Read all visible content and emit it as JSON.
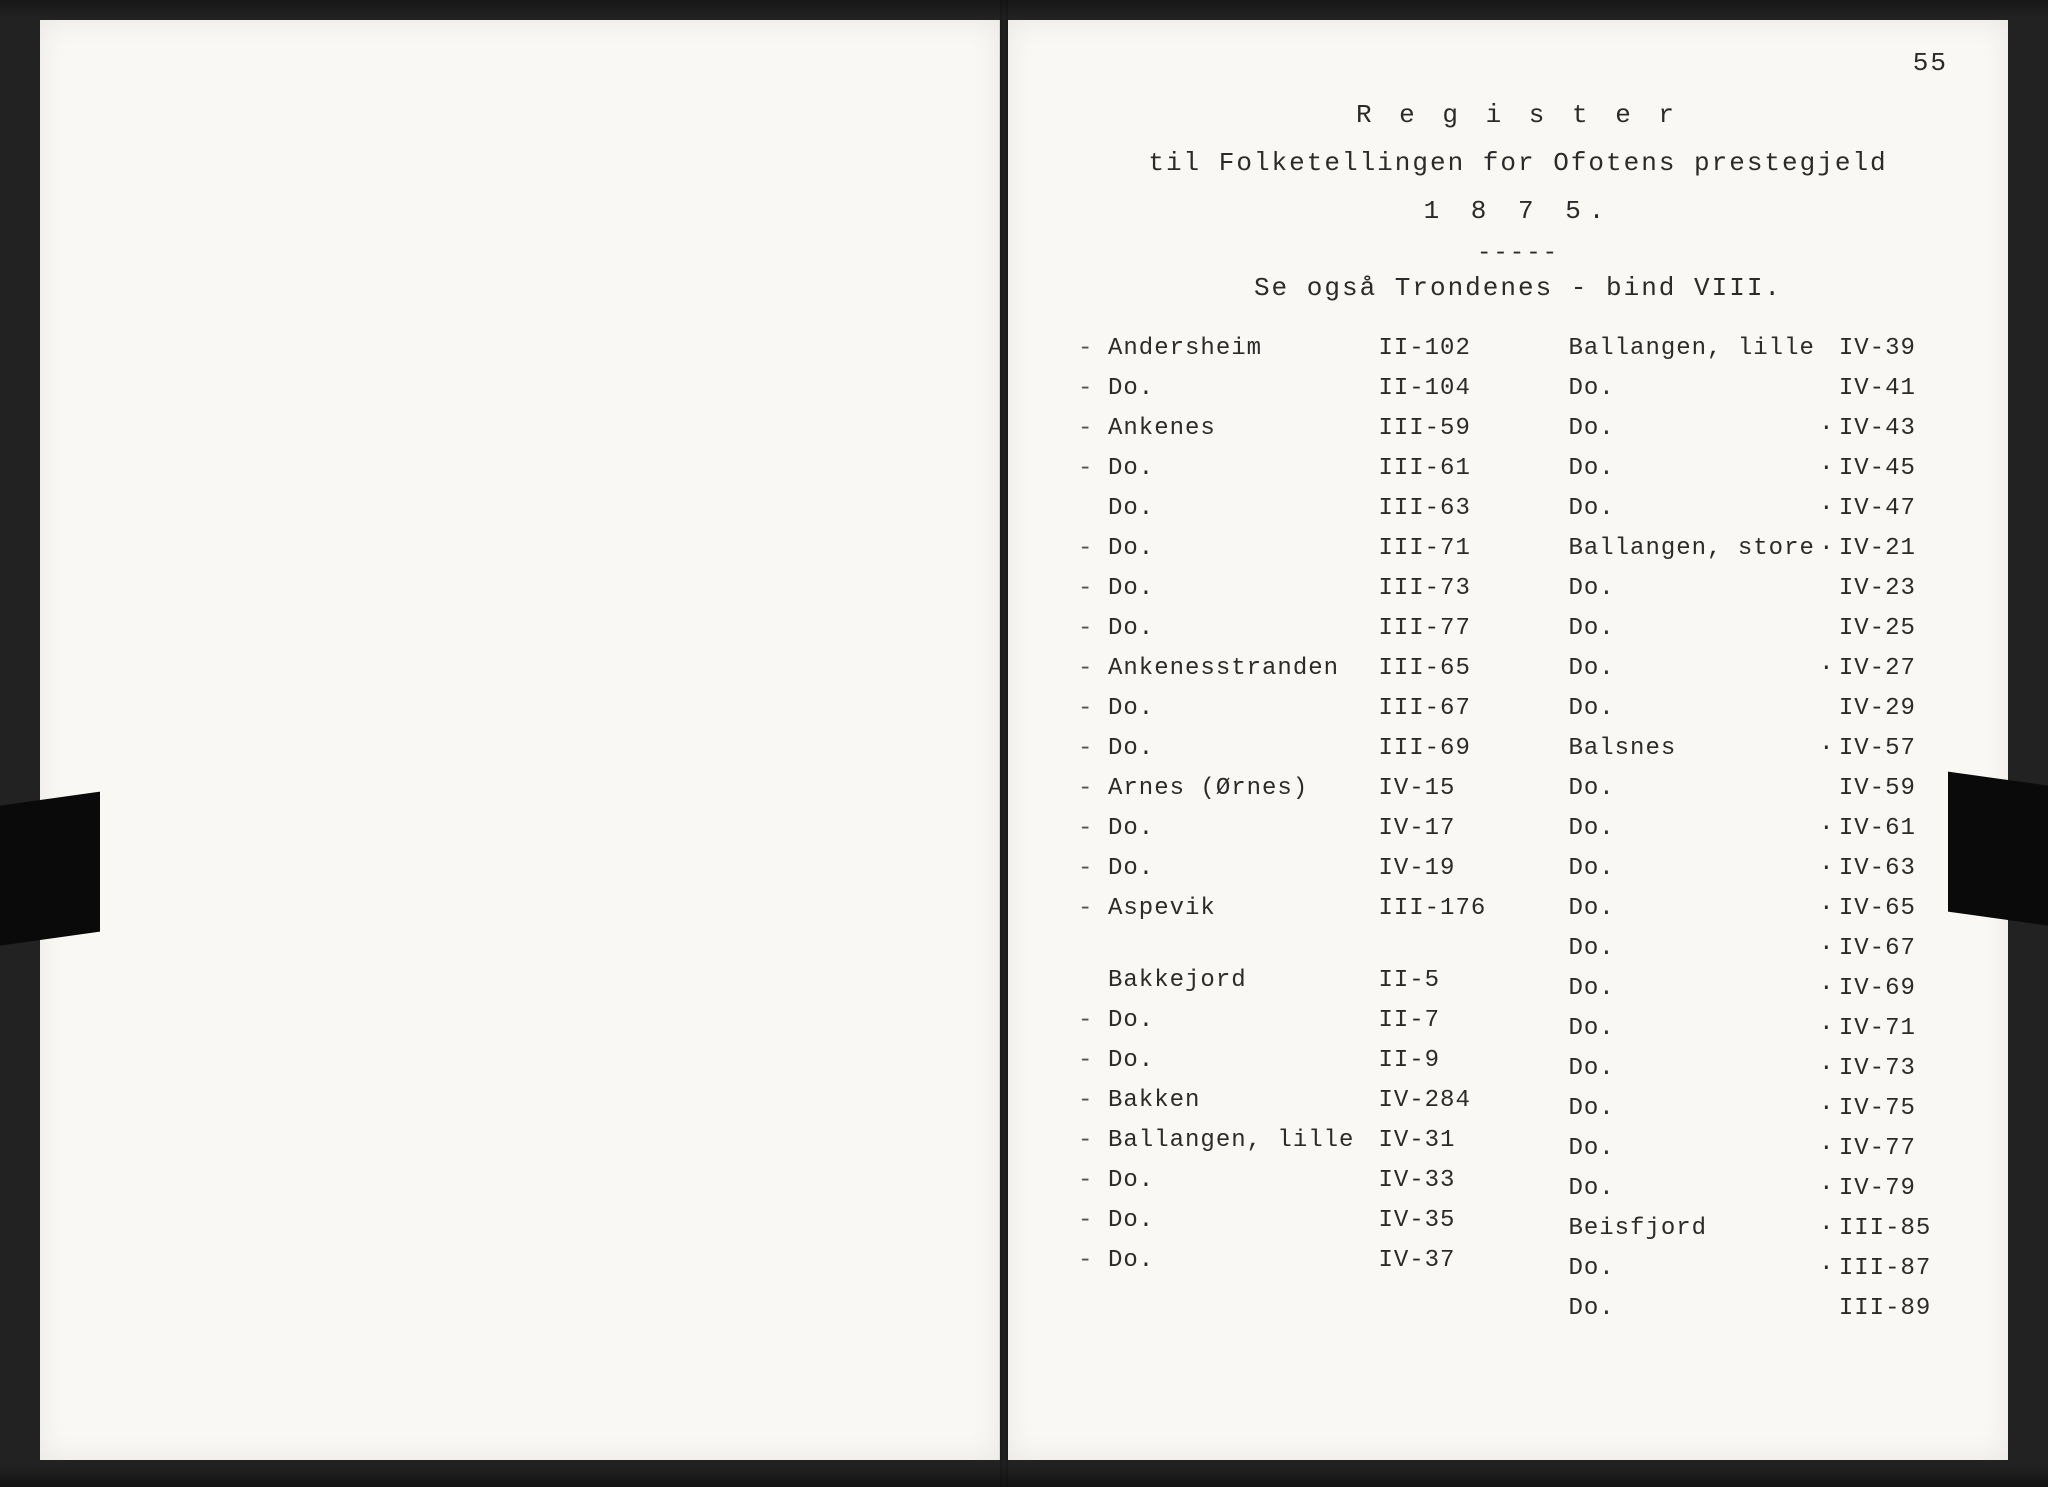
{
  "page_number": "55",
  "header": {
    "title": "R e g i s t e r",
    "subtitle": "til Folketellingen for Ofotens prestegjeld",
    "year": "1 8 7 5.",
    "dashes": "-----",
    "note": "Se også Trondenes - bind VIII."
  },
  "left_col": [
    {
      "dash": "-",
      "name": "Andersheim",
      "ref": "II-102",
      "dot": ""
    },
    {
      "dash": "-",
      "name": "Do.",
      "ref": "II-104",
      "dot": ""
    },
    {
      "dash": "-",
      "name": "Ankenes",
      "ref": "III-59",
      "dot": ""
    },
    {
      "dash": "-",
      "name": "Do.",
      "ref": "III-61",
      "dot": ""
    },
    {
      "dash": "",
      "name": "Do.",
      "ref": "III-63",
      "dot": ""
    },
    {
      "dash": "-",
      "name": "Do.",
      "ref": "III-71",
      "dot": ""
    },
    {
      "dash": "-",
      "name": "Do.",
      "ref": "III-73",
      "dot": ""
    },
    {
      "dash": "-",
      "name": "Do.",
      "ref": "III-77",
      "dot": ""
    },
    {
      "dash": "-",
      "name": "Ankenesstranden",
      "ref": "III-65",
      "dot": ""
    },
    {
      "dash": "-",
      "name": "Do.",
      "ref": "III-67",
      "dot": ""
    },
    {
      "dash": "-",
      "name": "Do.",
      "ref": "III-69",
      "dot": ""
    },
    {
      "dash": "-",
      "name": "Arnes (Ørnes)",
      "ref": "IV-15",
      "dot": ""
    },
    {
      "dash": "-",
      "name": "Do.",
      "ref": "IV-17",
      "dot": ""
    },
    {
      "dash": "-",
      "name": "Do.",
      "ref": "IV-19",
      "dot": ""
    },
    {
      "dash": "-",
      "name": "Aspevik",
      "ref": "III-176",
      "dot": ""
    },
    {
      "dash": "",
      "name": "",
      "ref": "",
      "dot": ""
    },
    {
      "dash": "",
      "name": "",
      "ref": "",
      "dot": ""
    },
    {
      "dash": "",
      "name": "Bakkejord",
      "ref": "II-5",
      "dot": ""
    },
    {
      "dash": "-",
      "name": "Do.",
      "ref": "II-7",
      "dot": ""
    },
    {
      "dash": "-",
      "name": "Do.",
      "ref": "II-9",
      "dot": ""
    },
    {
      "dash": "-",
      "name": "Bakken",
      "ref": "IV-284",
      "dot": ""
    },
    {
      "dash": "-",
      "name": "Ballangen, lille",
      "ref": "IV-31",
      "dot": ""
    },
    {
      "dash": "-",
      "name": "Do.",
      "ref": "IV-33",
      "dot": ""
    },
    {
      "dash": "-",
      "name": "Do.",
      "ref": "IV-35",
      "dot": ""
    },
    {
      "dash": "-",
      "name": "Do.",
      "ref": "IV-37",
      "dot": ""
    }
  ],
  "right_col": [
    {
      "dash": "",
      "name": "Ballangen, lille",
      "ref": "IV-39",
      "dot": ""
    },
    {
      "dash": "",
      "name": "Do.",
      "ref": "IV-41",
      "dot": ""
    },
    {
      "dash": "",
      "name": "Do.",
      "ref": "IV-43",
      "dot": "·"
    },
    {
      "dash": "",
      "name": "Do.",
      "ref": "IV-45",
      "dot": "·"
    },
    {
      "dash": "",
      "name": "Do.",
      "ref": "IV-47",
      "dot": "·"
    },
    {
      "dash": "",
      "name": "Ballangen, store",
      "ref": "IV-21",
      "dot": "·"
    },
    {
      "dash": "",
      "name": "Do.",
      "ref": "IV-23",
      "dot": ""
    },
    {
      "dash": "",
      "name": "Do.",
      "ref": "IV-25",
      "dot": ""
    },
    {
      "dash": "",
      "name": "Do.",
      "ref": "IV-27",
      "dot": "·"
    },
    {
      "dash": "",
      "name": "Do.",
      "ref": "IV-29",
      "dot": ""
    },
    {
      "dash": "",
      "name": "Balsnes",
      "ref": "IV-57",
      "dot": "·"
    },
    {
      "dash": "",
      "name": "Do.",
      "ref": "IV-59",
      "dot": ""
    },
    {
      "dash": "",
      "name": "Do.",
      "ref": "IV-61",
      "dot": "·"
    },
    {
      "dash": "",
      "name": "Do.",
      "ref": "IV-63",
      "dot": "·"
    },
    {
      "dash": "",
      "name": "Do.",
      "ref": "IV-65",
      "dot": "·"
    },
    {
      "dash": "",
      "name": "Do.",
      "ref": "IV-67",
      "dot": "·"
    },
    {
      "dash": "",
      "name": "Do.",
      "ref": "IV-69",
      "dot": "·"
    },
    {
      "dash": "",
      "name": "Do.",
      "ref": "IV-71",
      "dot": "·"
    },
    {
      "dash": "",
      "name": "Do.",
      "ref": "IV-73",
      "dot": "·"
    },
    {
      "dash": "",
      "name": "Do.",
      "ref": "IV-75",
      "dot": "·"
    },
    {
      "dash": "",
      "name": "Do.",
      "ref": "IV-77",
      "dot": "·"
    },
    {
      "dash": "",
      "name": "Do.",
      "ref": "IV-79",
      "dot": "·"
    },
    {
      "dash": "",
      "name": "Beisfjord",
      "ref": "III-85",
      "dot": "·"
    },
    {
      "dash": "",
      "name": "Do.",
      "ref": "III-87",
      "dot": "·"
    },
    {
      "dash": "",
      "name": "Do.",
      "ref": "III-89",
      "dot": ""
    }
  ]
}
